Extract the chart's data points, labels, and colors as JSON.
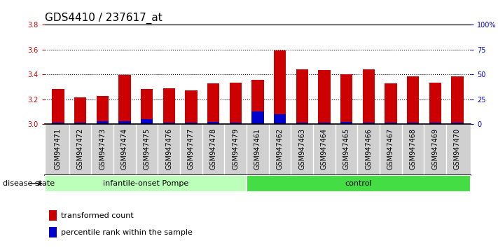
{
  "title": "GDS4410 / 237617_at",
  "samples": [
    "GSM947471",
    "GSM947472",
    "GSM947473",
    "GSM947474",
    "GSM947475",
    "GSM947476",
    "GSM947477",
    "GSM947478",
    "GSM947479",
    "GSM947461",
    "GSM947462",
    "GSM947463",
    "GSM947464",
    "GSM947465",
    "GSM947466",
    "GSM947467",
    "GSM947468",
    "GSM947469",
    "GSM947470"
  ],
  "red_values": [
    3.285,
    3.215,
    3.225,
    3.395,
    3.285,
    3.29,
    3.27,
    3.33,
    3.335,
    3.355,
    3.595,
    3.44,
    3.435,
    3.4,
    3.44,
    3.325,
    3.385,
    3.335,
    3.385
  ],
  "blue_values": [
    3.01,
    3.01,
    3.02,
    3.025,
    3.04,
    3.01,
    3.01,
    3.015,
    3.01,
    3.1,
    3.08,
    3.01,
    3.01,
    3.015,
    3.01,
    3.01,
    3.01,
    3.01,
    3.01
  ],
  "ymin": 3.0,
  "ymax": 3.8,
  "yticks": [
    3.0,
    3.2,
    3.4,
    3.6,
    3.8
  ],
  "y2ticks": [
    0,
    25,
    50,
    75,
    100
  ],
  "y2labels": [
    "0",
    "25",
    "50",
    "75",
    "100%"
  ],
  "bar_width": 0.55,
  "red_color": "#cc0000",
  "blue_color": "#0000cc",
  "group1_label": "infantile-onset Pompe",
  "group2_label": "control",
  "group1_color": "#bbffbb",
  "group2_color": "#44dd44",
  "disease_state_label": "disease state",
  "legend1": "transformed count",
  "legend2": "percentile rank within the sample",
  "group1_count": 9,
  "group2_count": 10,
  "bg_color": "#d0d0d0",
  "plot_bg": "#ffffff",
  "title_fontsize": 11,
  "tick_fontsize": 7,
  "label_fontsize": 8
}
